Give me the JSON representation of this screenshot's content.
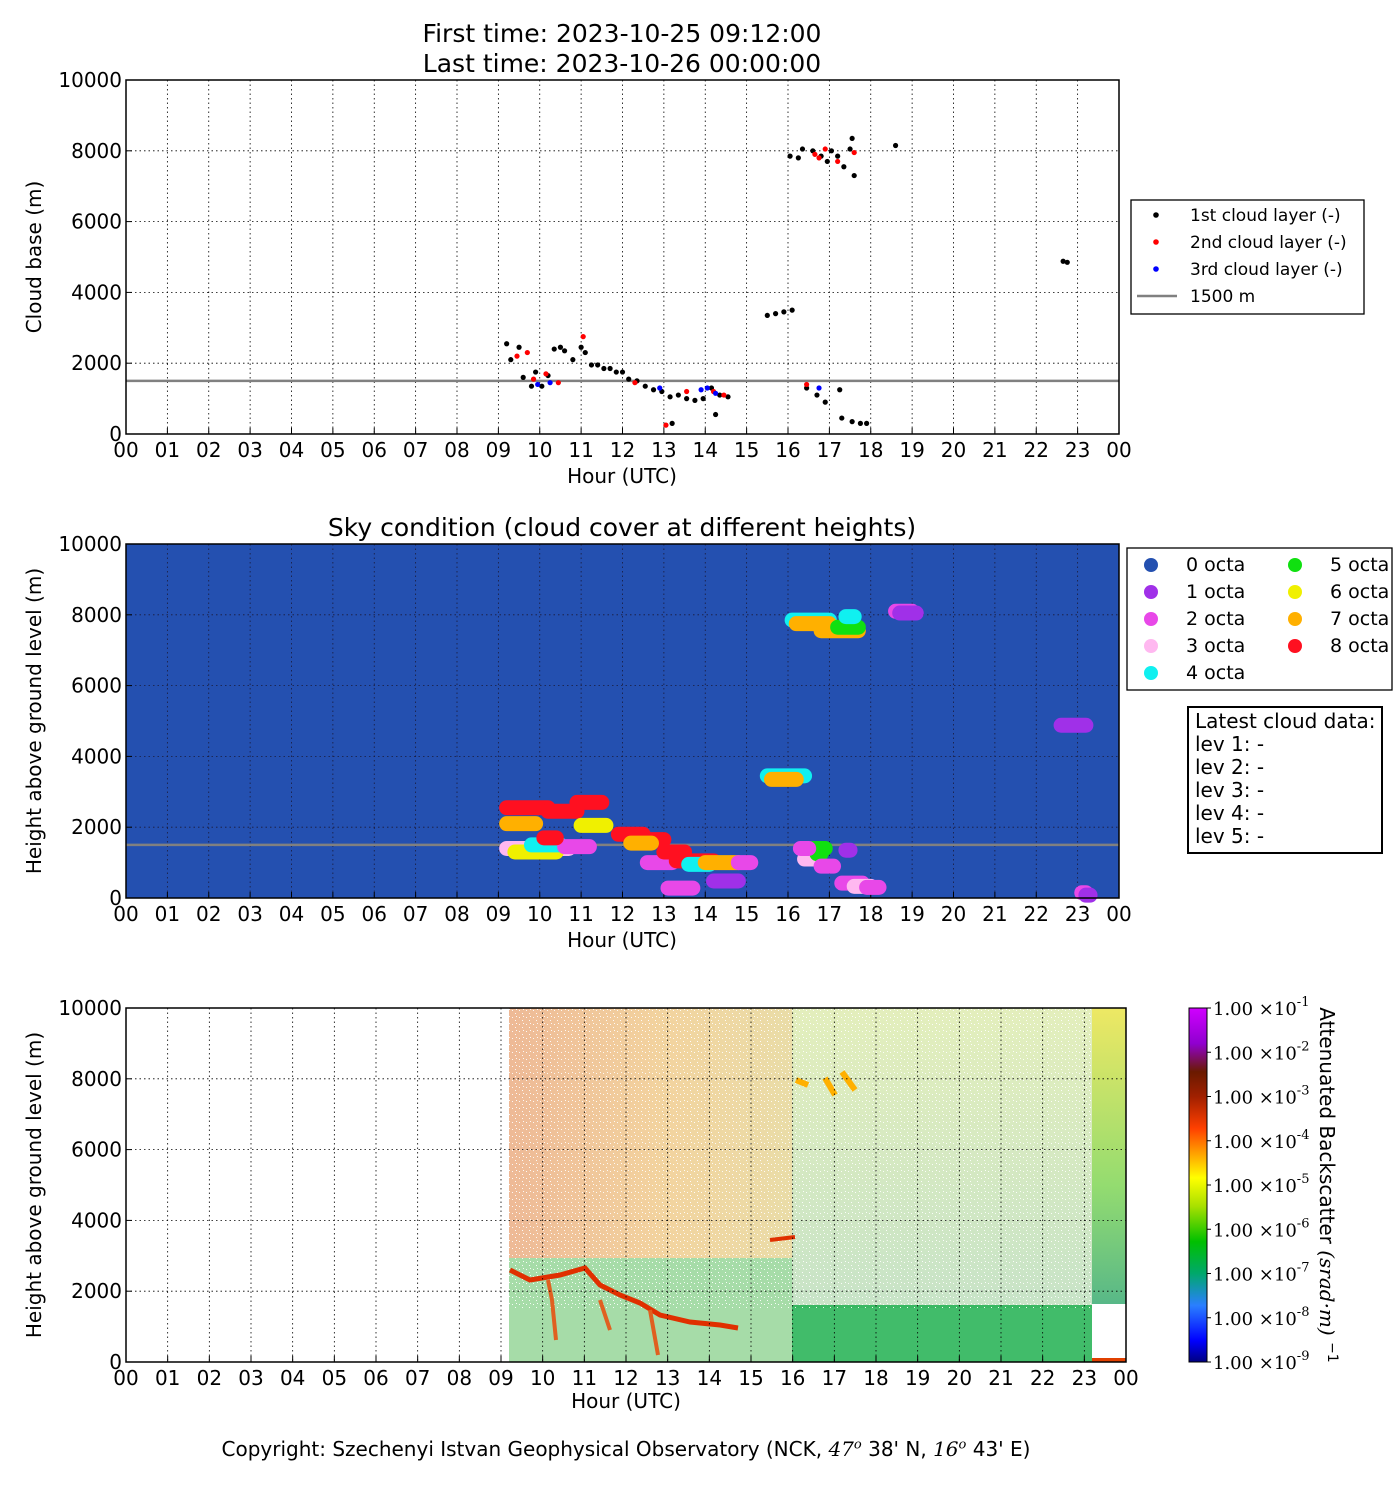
{
  "header": {
    "first_time": "First time: 2023-10-25 09:12:00",
    "last_time": "Last time: 2023-10-26 00:00:00"
  },
  "colors": {
    "layer1": "#000000",
    "layer2": "#ff0000",
    "layer3": "#0000ff",
    "ref_line": "#808080",
    "sky_bg": "#2450b0",
    "octa": [
      "#2450b0",
      "#a030e8",
      "#e848e8",
      "#ffb8f0",
      "#10f0f0",
      "#10e010",
      "#f0f000",
      "#ffb000",
      "#ff1020"
    ]
  },
  "copyright": {
    "prefix": "Copyright: Szechenyi Istvan Geophysical Observatory (NCK,",
    "lat_deg": "47",
    "lat_min": "38' N,",
    "lon_deg": "16",
    "lon_min": "43' E)"
  },
  "latest": {
    "title": "Latest cloud data:",
    "lines": [
      "lev 1: -",
      "lev 2: -",
      "lev 3: -",
      "lev 4: -",
      "lev 5: -"
    ]
  },
  "chart_data": [
    {
      "type": "scatter",
      "title": "",
      "xlabel": "Hour (UTC)",
      "ylabel": "Cloud base (m)",
      "xlim": [
        0,
        24
      ],
      "ylim": [
        0,
        10000
      ],
      "x_ticklabels": [
        "00",
        "01",
        "02",
        "03",
        "04",
        "05",
        "06",
        "07",
        "08",
        "09",
        "10",
        "11",
        "12",
        "13",
        "14",
        "15",
        "16",
        "17",
        "18",
        "19",
        "20",
        "21",
        "22",
        "23",
        "00"
      ],
      "y_ticklabels": [
        "0",
        "2000",
        "4000",
        "6000",
        "8000",
        "10000"
      ],
      "grid": true,
      "legend_position": "right",
      "reference_line": {
        "name": "1500 m",
        "y": 1500
      },
      "series": [
        {
          "name": "1st cloud layer (-)",
          "points": [
            [
              9.2,
              2550
            ],
            [
              9.3,
              2100
            ],
            [
              9.5,
              2450
            ],
            [
              9.6,
              1600
            ],
            [
              9.8,
              1350
            ],
            [
              9.9,
              1750
            ],
            [
              10.05,
              1350
            ],
            [
              10.2,
              1650
            ],
            [
              10.35,
              2400
            ],
            [
              10.5,
              2450
            ],
            [
              10.6,
              2350
            ],
            [
              10.8,
              2100
            ],
            [
              11.0,
              2450
            ],
            [
              11.1,
              2300
            ],
            [
              11.25,
              1950
            ],
            [
              11.4,
              1950
            ],
            [
              11.55,
              1850
            ],
            [
              11.7,
              1850
            ],
            [
              11.85,
              1750
            ],
            [
              12.0,
              1750
            ],
            [
              12.15,
              1550
            ],
            [
              12.35,
              1500
            ],
            [
              12.55,
              1350
            ],
            [
              12.75,
              1250
            ],
            [
              12.95,
              1200
            ],
            [
              13.15,
              1050
            ],
            [
              13.35,
              1100
            ],
            [
              13.55,
              1000
            ],
            [
              13.75,
              950
            ],
            [
              13.95,
              1000
            ],
            [
              14.15,
              1300
            ],
            [
              14.35,
              1100
            ],
            [
              14.55,
              1050
            ],
            [
              13.2,
              300
            ],
            [
              14.25,
              550
            ],
            [
              15.5,
              3350
            ],
            [
              15.7,
              3400
            ],
            [
              15.9,
              3450
            ],
            [
              16.1,
              3500
            ],
            [
              16.05,
              7850
            ],
            [
              16.25,
              7800
            ],
            [
              16.35,
              8050
            ],
            [
              16.6,
              8000
            ],
            [
              16.8,
              7850
            ],
            [
              16.95,
              7700
            ],
            [
              17.05,
              8000
            ],
            [
              17.2,
              7850
            ],
            [
              17.35,
              7550
            ],
            [
              17.5,
              8050
            ],
            [
              17.55,
              8350
            ],
            [
              17.6,
              7300
            ],
            [
              16.45,
              1300
            ],
            [
              16.7,
              1100
            ],
            [
              16.9,
              900
            ],
            [
              17.25,
              1250
            ],
            [
              17.3,
              450
            ],
            [
              17.55,
              350
            ],
            [
              17.75,
              300
            ],
            [
              17.9,
              300
            ],
            [
              18.6,
              8150
            ],
            [
              22.65,
              4880
            ],
            [
              22.75,
              4850
            ]
          ]
        },
        {
          "name": "2nd cloud layer (-)",
          "points": [
            [
              9.45,
              2200
            ],
            [
              9.7,
              2300
            ],
            [
              9.85,
              1550
            ],
            [
              10.15,
              1700
            ],
            [
              10.45,
              1450
            ],
            [
              11.05,
              2750
            ],
            [
              12.3,
              1450
            ],
            [
              13.55,
              1200
            ],
            [
              14.2,
              1200
            ],
            [
              14.45,
              1100
            ],
            [
              16.45,
              1400
            ],
            [
              16.65,
              7900
            ],
            [
              16.75,
              7800
            ],
            [
              16.9,
              8050
            ],
            [
              17.2,
              7700
            ],
            [
              17.6,
              7950
            ],
            [
              13.05,
              250
            ]
          ]
        },
        {
          "name": "3rd cloud layer (-)",
          "points": [
            [
              9.95,
              1400
            ],
            [
              10.25,
              1450
            ],
            [
              13.9,
              1250
            ],
            [
              14.05,
              1300
            ],
            [
              14.25,
              1150
            ],
            [
              16.75,
              1300
            ],
            [
              12.9,
              1300
            ]
          ]
        }
      ]
    },
    {
      "type": "scatter",
      "title": "Sky condition (cloud cover at different heights)",
      "xlabel": "Hour (UTC)",
      "ylabel": "Height above ground level (m)",
      "xlim": [
        0,
        24
      ],
      "ylim": [
        0,
        10000
      ],
      "x_ticklabels": [
        "00",
        "01",
        "02",
        "03",
        "04",
        "05",
        "06",
        "07",
        "08",
        "09",
        "10",
        "11",
        "12",
        "13",
        "14",
        "15",
        "16",
        "17",
        "18",
        "19",
        "20",
        "21",
        "22",
        "23",
        "00"
      ],
      "y_ticklabels": [
        "0",
        "2000",
        "4000",
        "6000",
        "8000",
        "10000"
      ],
      "grid": true,
      "legend_position": "right",
      "reference_line": {
        "y": 1500
      },
      "legend": [
        "0 octa",
        "1 octa",
        "2 octa",
        "3 octa",
        "4 octa",
        "5 octa",
        "6 octa",
        "7 octa",
        "8 octa"
      ],
      "segments": [
        {
          "octa": 3,
          "x0": 9.2,
          "x1": 10.7,
          "y": 1400
        },
        {
          "octa": 6,
          "x0": 9.4,
          "x1": 10.4,
          "y": 1300
        },
        {
          "octa": 4,
          "x0": 9.8,
          "x1": 10.5,
          "y": 1500
        },
        {
          "octa": 2,
          "x0": 10.6,
          "x1": 11.2,
          "y": 1450
        },
        {
          "octa": 7,
          "x0": 9.2,
          "x1": 9.9,
          "y": 2100
        },
        {
          "octa": 8,
          "x0": 9.2,
          "x1": 10.2,
          "y": 2550
        },
        {
          "octa": 8,
          "x0": 10.2,
          "x1": 10.9,
          "y": 2450
        },
        {
          "octa": 8,
          "x0": 10.9,
          "x1": 11.5,
          "y": 2700
        },
        {
          "octa": 6,
          "x0": 11.0,
          "x1": 11.6,
          "y": 2050
        },
        {
          "octa": 8,
          "x0": 10.1,
          "x1": 10.4,
          "y": 1700
        },
        {
          "octa": 8,
          "x0": 11.9,
          "x1": 12.5,
          "y": 1800
        },
        {
          "octa": 8,
          "x0": 12.5,
          "x1": 13.0,
          "y": 1650
        },
        {
          "octa": 7,
          "x0": 12.2,
          "x1": 12.7,
          "y": 1550
        },
        {
          "octa": 2,
          "x0": 12.6,
          "x1": 13.2,
          "y": 1000
        },
        {
          "octa": 8,
          "x0": 13.0,
          "x1": 13.5,
          "y": 1300
        },
        {
          "octa": 8,
          "x0": 13.3,
          "x1": 14.2,
          "y": 1050
        },
        {
          "octa": 4,
          "x0": 13.6,
          "x1": 14.1,
          "y": 950
        },
        {
          "octa": 7,
          "x0": 14.0,
          "x1": 14.8,
          "y": 1000
        },
        {
          "octa": 2,
          "x0": 14.8,
          "x1": 15.1,
          "y": 1000
        },
        {
          "octa": 2,
          "x0": 13.1,
          "x1": 13.7,
          "y": 280
        },
        {
          "octa": 1,
          "x0": 14.2,
          "x1": 14.8,
          "y": 480
        },
        {
          "octa": 4,
          "x0": 15.5,
          "x1": 16.4,
          "y": 3450
        },
        {
          "octa": 7,
          "x0": 15.6,
          "x1": 16.2,
          "y": 3350
        },
        {
          "octa": 4,
          "x0": 16.1,
          "x1": 17.0,
          "y": 7850
        },
        {
          "octa": 7,
          "x0": 16.2,
          "x1": 17.0,
          "y": 7750
        },
        {
          "octa": 7,
          "x0": 16.8,
          "x1": 17.7,
          "y": 7550
        },
        {
          "octa": 5,
          "x0": 17.2,
          "x1": 17.7,
          "y": 7650
        },
        {
          "octa": 4,
          "x0": 17.4,
          "x1": 17.6,
          "y": 7950
        },
        {
          "octa": 2,
          "x0": 18.6,
          "x1": 19.0,
          "y": 8100
        },
        {
          "octa": 1,
          "x0": 18.7,
          "x1": 19.1,
          "y": 8050
        },
        {
          "octa": 3,
          "x0": 16.4,
          "x1": 16.7,
          "y": 1100
        },
        {
          "octa": 5,
          "x0": 16.6,
          "x1": 16.9,
          "y": 1400
        },
        {
          "octa": 5,
          "x0": 16.7,
          "x1": 16.8,
          "y": 1250
        },
        {
          "octa": 2,
          "x0": 16.8,
          "x1": 17.1,
          "y": 900
        },
        {
          "octa": 1,
          "x0": 17.4,
          "x1": 17.5,
          "y": 1350
        },
        {
          "octa": 2,
          "x0": 17.3,
          "x1": 17.8,
          "y": 420
        },
        {
          "octa": 3,
          "x0": 17.6,
          "x1": 18.0,
          "y": 330
        },
        {
          "octa": 2,
          "x0": 17.9,
          "x1": 18.2,
          "y": 300
        },
        {
          "octa": 2,
          "x0": 16.3,
          "x1": 16.5,
          "y": 1400
        },
        {
          "octa": 1,
          "x0": 22.6,
          "x1": 23.2,
          "y": 4880
        },
        {
          "octa": 2,
          "x0": 23.1,
          "x1": 23.2,
          "y": 150
        },
        {
          "octa": 1,
          "x0": 23.2,
          "x1": 23.3,
          "y": 80
        }
      ]
    },
    {
      "type": "heatmap",
      "title": "",
      "xlabel": "Hour (UTC)",
      "ylabel": "Height above ground level (m)",
      "xlim": [
        0,
        24
      ],
      "ylim": [
        0,
        10000
      ],
      "x_ticklabels": [
        "00",
        "01",
        "02",
        "03",
        "04",
        "05",
        "06",
        "07",
        "08",
        "09",
        "10",
        "11",
        "12",
        "13",
        "14",
        "15",
        "16",
        "17",
        "18",
        "19",
        "20",
        "21",
        "22",
        "23",
        "00"
      ],
      "y_ticklabels": [
        "0",
        "2000",
        "4000",
        "6000",
        "8000",
        "10000"
      ],
      "grid": true,
      "log_scale": true,
      "colorbar": {
        "label_text": "Attenuated Backscatter",
        "label_units": "(srad·m)",
        "label_exp": "−1",
        "tick_mantissa": "1.00 ×10",
        "tick_exponents": [
          "-1",
          "-2",
          "-3",
          "-4",
          "-5",
          "-6",
          "-7",
          "-8",
          "-9"
        ],
        "range": [
          "1e-9",
          "1e-1"
        ]
      }
    }
  ]
}
